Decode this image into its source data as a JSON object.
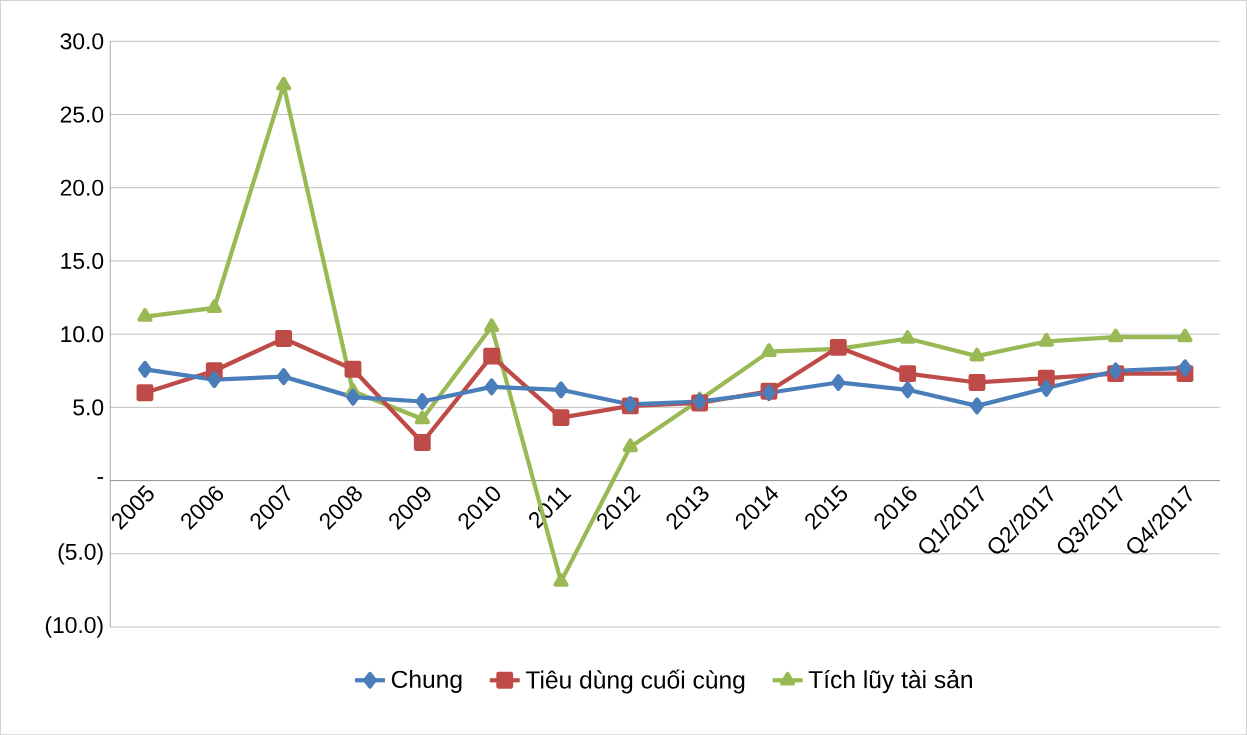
{
  "chart_data": {
    "type": "line",
    "categories": [
      "2005",
      "2006",
      "2007",
      "2008",
      "2009",
      "2010",
      "2011",
      "2012",
      "2013",
      "2014",
      "2015",
      "2016",
      "Q1/2017",
      "Q2/2017",
      "Q3/2017",
      "Q4/2017"
    ],
    "series": [
      {
        "name": "Chung",
        "color": "#4a7ebb",
        "marker": "diamond",
        "values": [
          7.6,
          6.9,
          7.1,
          5.7,
          5.4,
          6.4,
          6.2,
          5.2,
          5.4,
          6.0,
          6.7,
          6.2,
          5.1,
          6.3,
          7.5,
          7.7
        ]
      },
      {
        "name": "Tiêu dùng cuối cùng",
        "color": "#be4b48",
        "marker": "square",
        "values": [
          6.0,
          7.5,
          9.7,
          7.6,
          2.6,
          8.5,
          4.3,
          5.1,
          5.3,
          6.1,
          9.1,
          7.3,
          6.7,
          7.0,
          7.3,
          7.3
        ]
      },
      {
        "name": "Tích lũy tài sản",
        "color": "#98b954",
        "marker": "triangle",
        "values": [
          11.2,
          11.8,
          27.0,
          6.1,
          4.2,
          10.5,
          -6.9,
          2.3,
          5.5,
          8.8,
          9.0,
          9.7,
          8.5,
          9.5,
          9.8,
          9.8
        ]
      }
    ],
    "ylim": [
      -10,
      30
    ],
    "yticks": [
      {
        "value": -10,
        "label": "(10.0)"
      },
      {
        "value": -5,
        "label": "(5.0)"
      },
      {
        "value": 0,
        "label": "-"
      },
      {
        "value": 5,
        "label": "5.0"
      },
      {
        "value": 10,
        "label": "10.0"
      },
      {
        "value": 15,
        "label": "15.0"
      },
      {
        "value": 20,
        "label": "20.0"
      },
      {
        "value": 25,
        "label": "25.0"
      },
      {
        "value": 30,
        "label": "30.0"
      }
    ],
    "grid": "y",
    "legend": "bottom",
    "line_style": "solid"
  }
}
